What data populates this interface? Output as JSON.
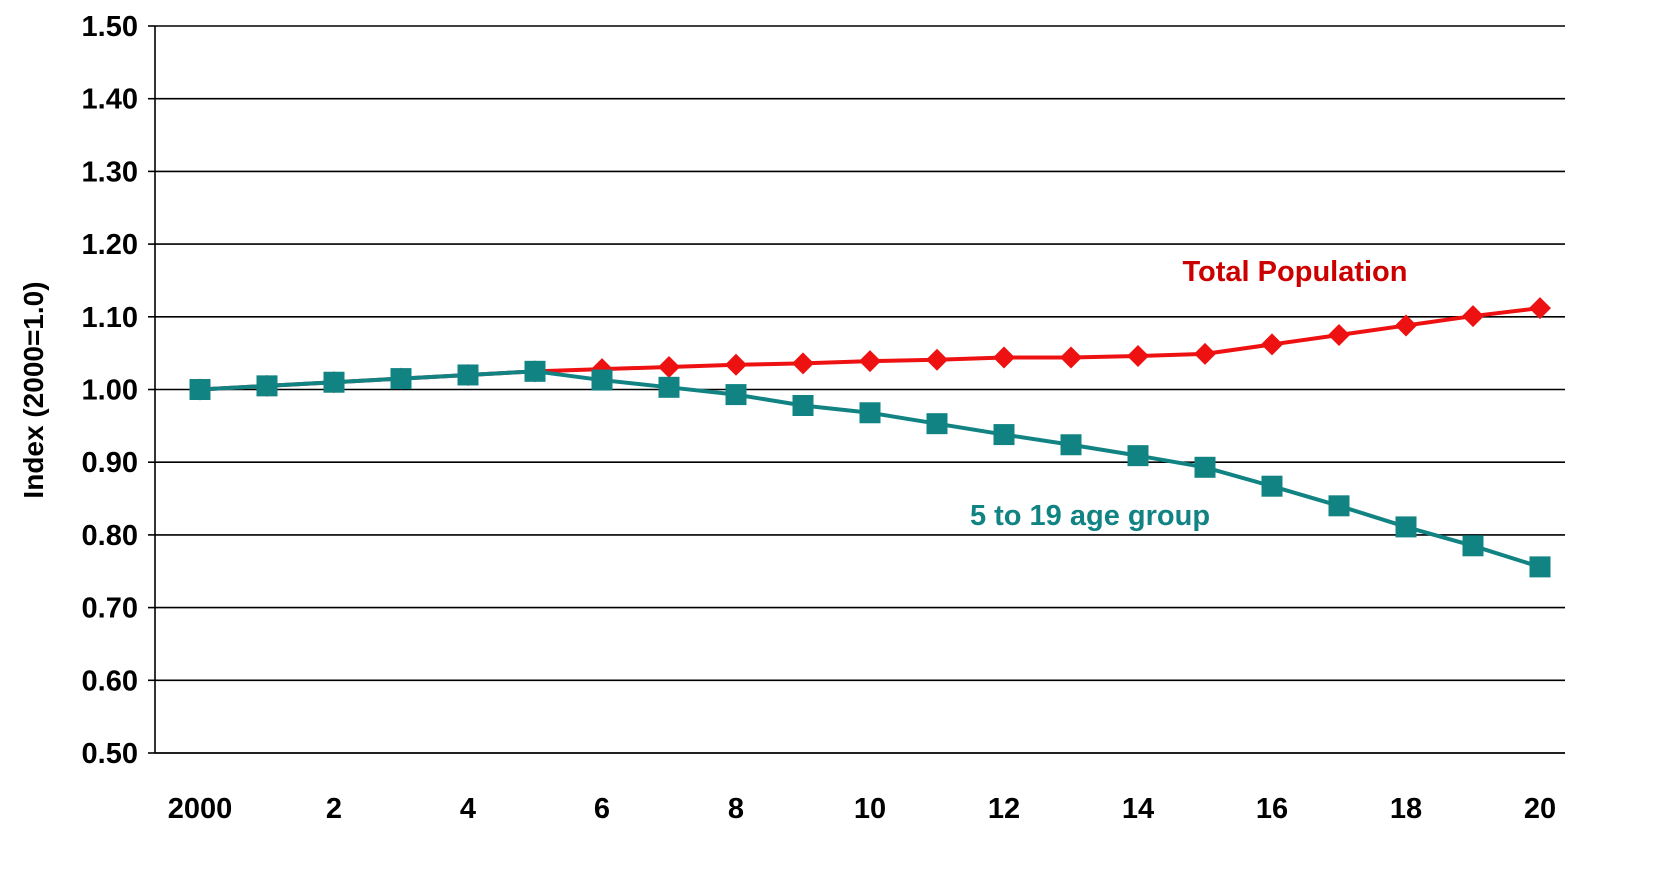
{
  "chart_data": {
    "type": "line",
    "title": "",
    "xlabel": "",
    "ylabel": "Index (2000=1.0)",
    "x": [
      2000,
      2001,
      2002,
      2003,
      2004,
      2005,
      2006,
      2007,
      2008,
      2009,
      2010,
      2011,
      2012,
      2013,
      2014,
      2015,
      2016,
      2017,
      2018,
      2019,
      2020
    ],
    "x_tick_labels": [
      "2000",
      "2",
      "4",
      "6",
      "8",
      "10",
      "12",
      "14",
      "16",
      "18",
      "20"
    ],
    "x_tick_values": [
      2000,
      2002,
      2004,
      2006,
      2008,
      2010,
      2012,
      2014,
      2016,
      2018,
      2020
    ],
    "y_tick_labels": [
      "0.50",
      "0.60",
      "0.70",
      "0.80",
      "0.90",
      "1.00",
      "1.10",
      "1.20",
      "1.30",
      "1.40",
      "1.50"
    ],
    "y_tick_values": [
      0.5,
      0.6,
      0.7,
      0.8,
      0.9,
      1.0,
      1.1,
      1.2,
      1.3,
      1.4,
      1.5
    ],
    "xlim": [
      2000,
      2020
    ],
    "ylim": [
      0.5,
      1.5
    ],
    "grid": "horizontal",
    "legend": "none",
    "series": [
      {
        "name": "Total Population",
        "color": "#ee1111",
        "marker": "diamond",
        "values": [
          1.0,
          1.005,
          1.01,
          1.015,
          1.02,
          1.025,
          1.028,
          1.031,
          1.034,
          1.036,
          1.039,
          1.041,
          1.044,
          1.044,
          1.046,
          1.049,
          1.062,
          1.075,
          1.088,
          1.101,
          1.112
        ]
      },
      {
        "name": "5 to 19 age group",
        "color": "#128383",
        "marker": "square",
        "values": [
          1.0,
          1.005,
          1.01,
          1.015,
          1.02,
          1.025,
          1.013,
          1.003,
          0.993,
          0.978,
          0.968,
          0.953,
          0.938,
          0.924,
          0.909,
          0.893,
          0.867,
          0.84,
          0.811,
          0.785,
          0.756
        ]
      }
    ],
    "annotations": [
      {
        "text": "Total Population",
        "series": 0,
        "color": "#cc0000"
      },
      {
        "text": "5 to 19 age group",
        "series": 1,
        "color": "#128383"
      }
    ]
  }
}
